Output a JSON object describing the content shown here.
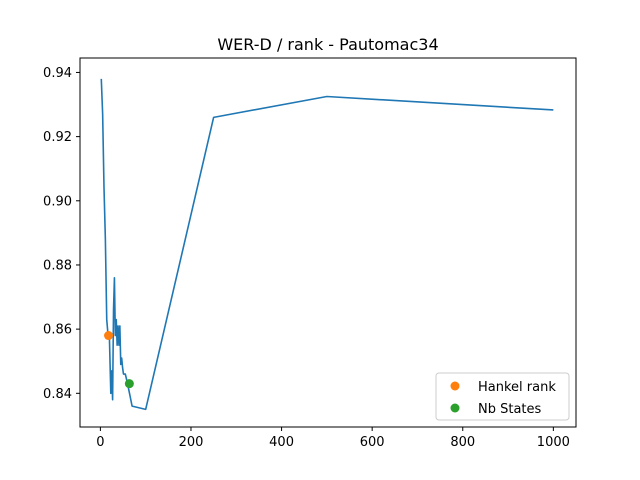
{
  "chart_data": {
    "type": "line",
    "title": "WER-D / rank - Pautomac34",
    "xlabel": "",
    "ylabel": "",
    "xlim": [
      -45,
      1050
    ],
    "ylim": [
      0.8295,
      0.9445
    ],
    "x_ticks": [
      0,
      200,
      400,
      600,
      800,
      1000
    ],
    "x_tick_labels": [
      "0",
      "200",
      "400",
      "600",
      "800",
      "1000"
    ],
    "y_ticks": [
      0.84,
      0.86,
      0.88,
      0.9,
      0.92,
      0.94
    ],
    "y_tick_labels": [
      "0.84",
      "0.86",
      "0.88",
      "0.90",
      "0.92",
      "0.94"
    ],
    "grid": false,
    "legend_position": "lower-right",
    "series": [
      {
        "name": "",
        "kind": "line",
        "color": "#1f77b4",
        "x": [
          2,
          5,
          8,
          11,
          14,
          17,
          20,
          23,
          25,
          27,
          29,
          31,
          33,
          35,
          37,
          39,
          41,
          43,
          45,
          47,
          49,
          51,
          55,
          60,
          70,
          100,
          250,
          500,
          1000
        ],
        "y": [
          0.938,
          0.927,
          0.904,
          0.888,
          0.863,
          0.858,
          0.857,
          0.84,
          0.847,
          0.838,
          0.866,
          0.876,
          0.858,
          0.863,
          0.855,
          0.861,
          0.855,
          0.861,
          0.849,
          0.851,
          0.848,
          0.846,
          0.846,
          0.843,
          0.836,
          0.835,
          0.926,
          0.9325,
          0.9283
        ]
      },
      {
        "name": "Hankel rank",
        "kind": "point",
        "color": "#ff7f0e",
        "x": [
          18
        ],
        "y": [
          0.858
        ]
      },
      {
        "name": "Nb States",
        "kind": "point",
        "color": "#2ca02c",
        "x": [
          64
        ],
        "y": [
          0.843
        ]
      }
    ]
  }
}
